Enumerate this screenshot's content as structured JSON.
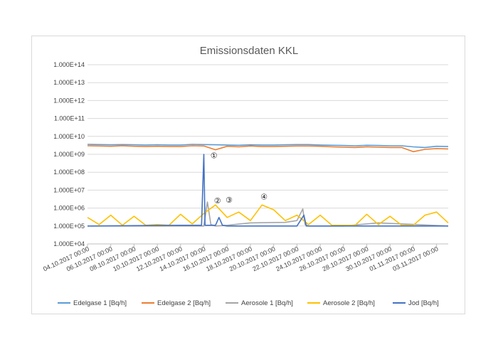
{
  "chart_data": {
    "type": "line",
    "title": "Emissionsdaten KKL",
    "yscale": "log",
    "ylim": [
      10000,
      100000000000000
    ],
    "y_ticks": [
      {
        "value": 10000,
        "label": "1.000E+04"
      },
      {
        "value": 100000,
        "label": "1.000E+05"
      },
      {
        "value": 1000000,
        "label": "1.000E+06"
      },
      {
        "value": 10000000,
        "label": "1.000E+07"
      },
      {
        "value": 100000000,
        "label": "1.000E+08"
      },
      {
        "value": 1000000000,
        "label": "1.000E+09"
      },
      {
        "value": 10000000000,
        "label": "1.000E+10"
      },
      {
        "value": 100000000000,
        "label": "1.000E+11"
      },
      {
        "value": 1000000000000,
        "label": "1.000E+12"
      },
      {
        "value": 10000000000000,
        "label": "1.000E+13"
      },
      {
        "value": 100000000000000,
        "label": "1.000E+14"
      }
    ],
    "xlim": [
      "2017-10-04",
      "2017-11-04"
    ],
    "x_ticks": [
      {
        "date": "2017-10-04",
        "label": "04.10.2017 00:00"
      },
      {
        "date": "2017-10-06",
        "label": "06.10.2017 00:00"
      },
      {
        "date": "2017-10-08",
        "label": "08.10.2017 00:00"
      },
      {
        "date": "2017-10-10",
        "label": "10.10.2017 00:00"
      },
      {
        "date": "2017-10-12",
        "label": "12.10.2017 00:00"
      },
      {
        "date": "2017-10-14",
        "label": "14.10.2017 00:00"
      },
      {
        "date": "2017-10-16",
        "label": "16.10.2017 00:00"
      },
      {
        "date": "2017-10-18",
        "label": "18.10.2017 00:00"
      },
      {
        "date": "2017-10-20",
        "label": "20.10.2017 00:00"
      },
      {
        "date": "2017-10-22",
        "label": "22.10.2017 00:00"
      },
      {
        "date": "2017-10-24",
        "label": "24.10.2017 00:00"
      },
      {
        "date": "2017-10-26",
        "label": "26.10.2017 00:00"
      },
      {
        "date": "2017-10-28",
        "label": "28.10.2017 00:00"
      },
      {
        "date": "2017-10-30",
        "label": "30.10.2017 00:00"
      },
      {
        "date": "2017-11-01",
        "label": "01.11.2017 00:00"
      },
      {
        "date": "2017-11-03",
        "label": "03.11.2017 00:00"
      }
    ],
    "grid": true,
    "legend_position": "bottom",
    "series": [
      {
        "name": "Edelgase 1 [Bq/h]",
        "color": "#5b9bd5",
        "x": [
          "2017-10-04",
          "2017-10-05",
          "2017-10-06",
          "2017-10-07",
          "2017-10-08",
          "2017-10-09",
          "2017-10-10",
          "2017-10-11",
          "2017-10-12",
          "2017-10-13",
          "2017-10-14",
          "2017-10-15",
          "2017-10-16",
          "2017-10-17",
          "2017-10-18",
          "2017-10-19",
          "2017-10-20",
          "2017-10-21",
          "2017-10-22",
          "2017-10-23",
          "2017-10-24",
          "2017-10-25",
          "2017-10-26",
          "2017-10-27",
          "2017-10-28",
          "2017-10-29",
          "2017-10-30",
          "2017-10-31",
          "2017-11-01",
          "2017-11-02",
          "2017-11-03",
          "2017-11-04"
        ],
        "y": [
          3600000000.0,
          3500000000.0,
          3400000000.0,
          3500000000.0,
          3400000000.0,
          3300000000.0,
          3400000000.0,
          3300000000.0,
          3300000000.0,
          3600000000.0,
          3500000000.0,
          3400000000.0,
          3300000000.0,
          3200000000.0,
          3400000000.0,
          3300000000.0,
          3300000000.0,
          3400000000.0,
          3500000000.0,
          3500000000.0,
          3300000000.0,
          3200000000.0,
          3100000000.0,
          3000000000.0,
          3200000000.0,
          3100000000.0,
          3000000000.0,
          3000000000.0,
          2600000000.0,
          2400000000.0,
          2800000000.0,
          2700000000.0
        ]
      },
      {
        "name": "Edelgase 2 [Bq/h]",
        "color": "#ed7d31",
        "x": [
          "2017-10-04",
          "2017-10-05",
          "2017-10-06",
          "2017-10-07",
          "2017-10-08",
          "2017-10-09",
          "2017-10-10",
          "2017-10-11",
          "2017-10-12",
          "2017-10-13",
          "2017-10-14",
          "2017-10-15",
          "2017-10-16",
          "2017-10-17",
          "2017-10-18",
          "2017-10-19",
          "2017-10-20",
          "2017-10-21",
          "2017-10-22",
          "2017-10-23",
          "2017-10-24",
          "2017-10-25",
          "2017-10-26",
          "2017-10-27",
          "2017-10-28",
          "2017-10-29",
          "2017-10-30",
          "2017-10-31",
          "2017-11-01",
          "2017-11-02",
          "2017-11-03",
          "2017-11-04"
        ],
        "y": [
          3000000000.0,
          2900000000.0,
          2800000000.0,
          3000000000.0,
          2800000000.0,
          2700000000.0,
          2800000000.0,
          2700000000.0,
          2700000000.0,
          3000000000.0,
          2900000000.0,
          1800000000.0,
          2800000000.0,
          2600000000.0,
          2900000000.0,
          2700000000.0,
          2700000000.0,
          2800000000.0,
          2900000000.0,
          2900000000.0,
          2800000000.0,
          2600000000.0,
          2500000000.0,
          2400000000.0,
          2600000000.0,
          2500000000.0,
          2400000000.0,
          2400000000.0,
          1400000000.0,
          1900000000.0,
          2100000000.0,
          2000000000.0
        ]
      },
      {
        "name": "Aerosole 1 [Bq/h]",
        "color": "#a5a5a5",
        "x": [
          "2017-10-04",
          "2017-10-13",
          "2017-10-14",
          "2017-10-14.3",
          "2017-10-14.6",
          "2017-10-15",
          "2017-10-16",
          "2017-10-18",
          "2017-10-21",
          "2017-10-22",
          "2017-10-22.5",
          "2017-10-22.7",
          "2017-10-23",
          "2017-10-26",
          "2017-10-29",
          "2017-11-04"
        ],
        "y": [
          100000.0,
          100000.0,
          100000.0,
          2200000.0,
          120000.0,
          100000.0,
          110000.0,
          150000.0,
          160000.0,
          200000.0,
          900000.0,
          120000.0,
          100000.0,
          100000.0,
          150000.0,
          100000.0
        ]
      },
      {
        "name": "Aerosole 2 [Bq/h]",
        "color": "#ffc000",
        "x": [
          "2017-10-04",
          "2017-10-05",
          "2017-10-06",
          "2017-10-07",
          "2017-10-08",
          "2017-10-09",
          "2017-10-10",
          "2017-10-11",
          "2017-10-12",
          "2017-10-13",
          "2017-10-14",
          "2017-10-15",
          "2017-10-16",
          "2017-10-17",
          "2017-10-18",
          "2017-10-19",
          "2017-10-20",
          "2017-10-21",
          "2017-10-22",
          "2017-10-23",
          "2017-10-24",
          "2017-10-25",
          "2017-10-26",
          "2017-10-27",
          "2017-10-28",
          "2017-10-29",
          "2017-10-30",
          "2017-10-31",
          "2017-11-01",
          "2017-11-02",
          "2017-11-03",
          "2017-11-04"
        ],
        "y": [
          300000.0,
          120000.0,
          400000.0,
          110000.0,
          350000.0,
          110000.0,
          120000.0,
          110000.0,
          450000.0,
          130000.0,
          500000.0,
          1500000.0,
          300000.0,
          600000.0,
          200000.0,
          1500000.0,
          800000.0,
          200000.0,
          400000.0,
          120000.0,
          400000.0,
          110000.0,
          110000.0,
          110000.0,
          450000.0,
          120000.0,
          350000.0,
          110000.0,
          110000.0,
          400000.0,
          600000.0,
          150000.0
        ]
      },
      {
        "name": "Jod [Bq/h]",
        "color": "#4472c4",
        "x": [
          "2017-10-04",
          "2017-10-12",
          "2017-10-13.8",
          "2017-10-14",
          "2017-10-14.1",
          "2017-10-15",
          "2017-10-15.3",
          "2017-10-15.6",
          "2017-10-16",
          "2017-10-22",
          "2017-10-22.6",
          "2017-10-22.8",
          "2017-11-04"
        ],
        "y": [
          100000.0,
          110000.0,
          110000.0,
          1000000000.0,
          110000.0,
          110000.0,
          300000.0,
          110000.0,
          100000.0,
          100000.0,
          400000.0,
          100000.0,
          100000.0
        ]
      }
    ],
    "annotations": [
      {
        "label": "①",
        "date": "2017-10-14.5",
        "value": 600000000.0
      },
      {
        "label": "②",
        "date": "2017-10-14.8",
        "value": 1800000.0
      },
      {
        "label": "③",
        "date": "2017-10-15.8",
        "value": 2000000.0
      },
      {
        "label": "④",
        "date": "2017-10-18.8",
        "value": 3000000.0
      }
    ]
  }
}
